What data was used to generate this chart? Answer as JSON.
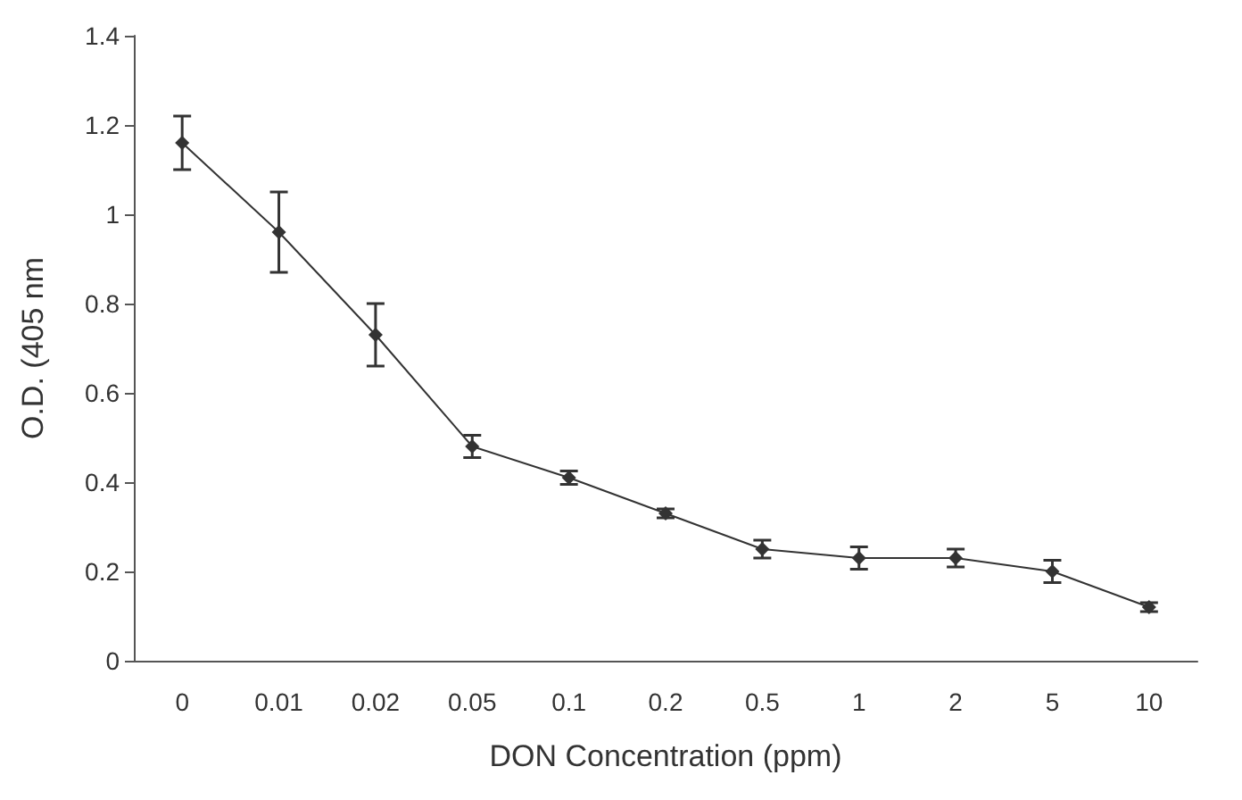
{
  "chart_data": {
    "type": "line",
    "xlabel": "DON Concentration (ppm)",
    "ylabel": "O.D. (405 nm",
    "categories": [
      "0",
      "0.01",
      "0.02",
      "0.05",
      "0.1",
      "0.2",
      "0.5",
      "1",
      "2",
      "5",
      "10"
    ],
    "series": [
      {
        "color": "#333333",
        "values": [
          1.16,
          0.96,
          0.73,
          0.48,
          0.41,
          0.33,
          0.25,
          0.23,
          0.23,
          0.2,
          0.12
        ],
        "errors": [
          0.06,
          0.09,
          0.07,
          0.025,
          0.015,
          0.01,
          0.02,
          0.025,
          0.02,
          0.025,
          0.01
        ]
      }
    ],
    "ylim": [
      0,
      1.4
    ],
    "yticks": [
      0,
      0.2,
      0.4,
      0.6,
      0.8,
      1,
      1.2,
      1.4
    ],
    "grid": false,
    "marker": "diamond",
    "line_style": "solid"
  }
}
